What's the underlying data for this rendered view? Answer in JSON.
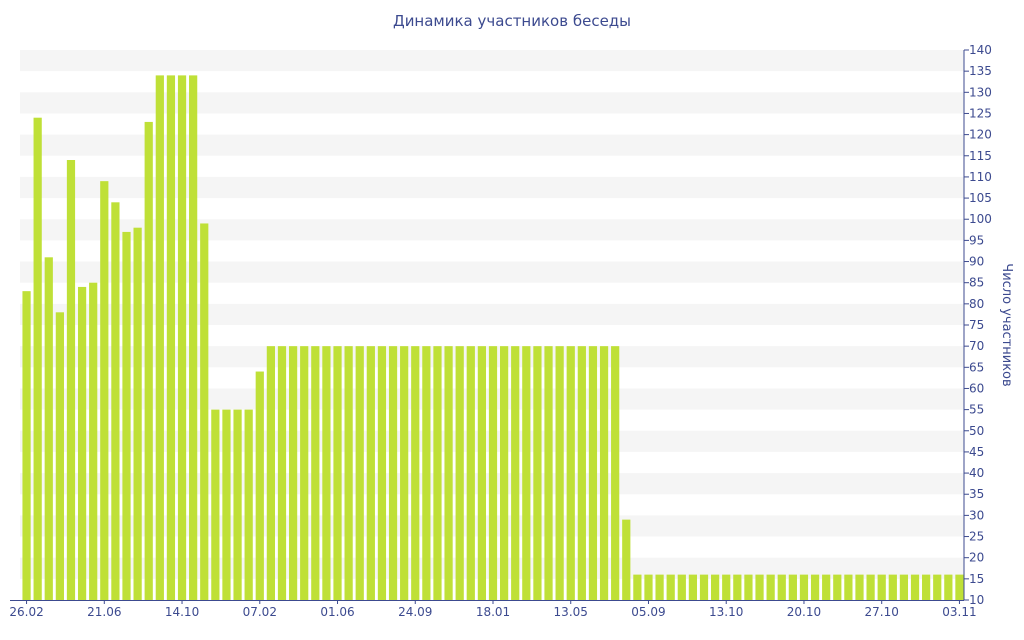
{
  "colors": {
    "bar": "#bfe037",
    "axis": "#3c4a8f",
    "band": "#f5f5f5"
  },
  "chart_data": {
    "type": "bar",
    "title": "Динамика участников беседы",
    "ylabel": "Число участников",
    "xlabel": "",
    "ylim": [
      10,
      140
    ],
    "y_ticks": [
      10,
      15,
      20,
      25,
      30,
      35,
      40,
      45,
      50,
      55,
      60,
      65,
      70,
      75,
      80,
      85,
      90,
      95,
      100,
      105,
      110,
      115,
      120,
      125,
      130,
      135,
      140
    ],
    "y_axis_position": "right",
    "grid": "alternating horizontal bands",
    "x_tick_labels": [
      {
        "label": "26.02",
        "index": 0
      },
      {
        "label": "21.06",
        "index": 7
      },
      {
        "label": "14.10",
        "index": 14
      },
      {
        "label": "07.02",
        "index": 21
      },
      {
        "label": "01.06",
        "index": 28
      },
      {
        "label": "24.09",
        "index": 35
      },
      {
        "label": "18.01",
        "index": 42
      },
      {
        "label": "13.05",
        "index": 49
      },
      {
        "label": "05.09",
        "index": 56
      },
      {
        "label": "13.10",
        "index": 63
      },
      {
        "label": "20.10",
        "index": 70
      },
      {
        "label": "27.10",
        "index": 77
      },
      {
        "label": "03.11",
        "index": 84
      }
    ],
    "series": [
      {
        "values": [
          83,
          124,
          91,
          78,
          114,
          84,
          85,
          109,
          104,
          97,
          98,
          123,
          134,
          134,
          134,
          134,
          99,
          55,
          55,
          55,
          55,
          64,
          70,
          70,
          70,
          70,
          70,
          70,
          70,
          70,
          70,
          70,
          70,
          70,
          70,
          70,
          70,
          70,
          70,
          70,
          70,
          70,
          70,
          70,
          70,
          70,
          70,
          70,
          70,
          70,
          70,
          70,
          70,
          70,
          29,
          16,
          16,
          16,
          16,
          16,
          16,
          16,
          16,
          16,
          16,
          16,
          16,
          16,
          16,
          16,
          16,
          16,
          16,
          16,
          16,
          16,
          16,
          16,
          16,
          16,
          16,
          16,
          16,
          16,
          16
        ]
      }
    ]
  }
}
